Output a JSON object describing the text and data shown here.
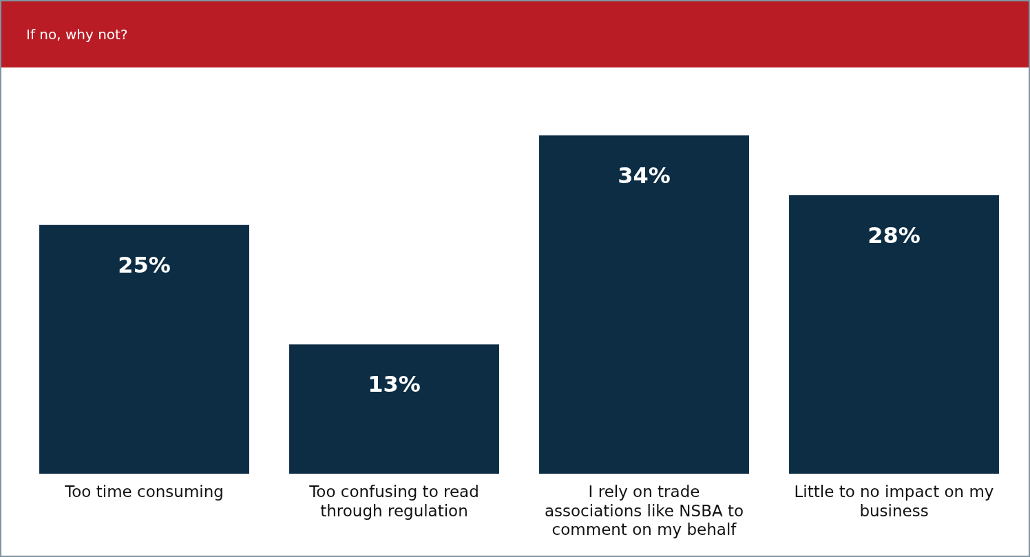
{
  "chart_data": {
    "type": "bar",
    "title": "If no, why not?",
    "categories": [
      "Too time consuming",
      "Too confusing to read through regulation",
      "I rely on trade associations like NSBA to comment on my behalf",
      "Little to no impact on my business"
    ],
    "values": [
      25,
      13,
      34,
      28
    ],
    "value_labels": [
      "25%",
      "13%",
      "34%",
      "28%"
    ],
    "color": "#0c2d44",
    "grid": false,
    "legend": false
  }
}
